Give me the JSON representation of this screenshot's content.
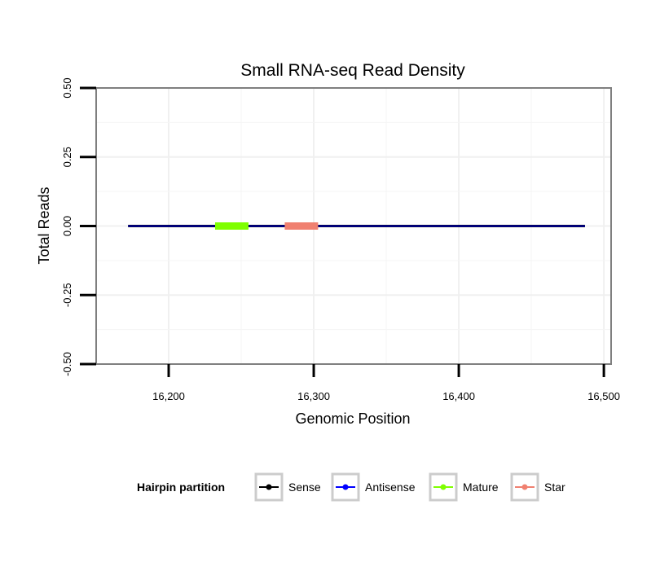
{
  "chart_data": {
    "type": "line",
    "title": "Small RNA-seq Read Density",
    "xlabel": "Genomic Position",
    "ylabel": "Total Reads",
    "xlim": [
      16150,
      16505
    ],
    "ylim": [
      -0.5,
      0.5
    ],
    "x_ticks": [
      16200,
      16300,
      16400,
      16500
    ],
    "x_tick_labels": [
      "16,200",
      "16,300",
      "16,400",
      "16,500"
    ],
    "y_ticks": [
      -0.5,
      -0.25,
      0,
      0.25,
      0.5
    ],
    "y_tick_labels": [
      "-0.50",
      "-0.25",
      "0.00",
      "0.25",
      "0.50"
    ],
    "grid": true,
    "series": [
      {
        "name": "Sense",
        "color": "#000000",
        "x": [
          16172,
          16487
        ],
        "y": [
          0,
          0
        ]
      },
      {
        "name": "Antisense",
        "color": "#0000ff",
        "x": [
          16172,
          16487
        ],
        "y": [
          0,
          0
        ]
      },
      {
        "name": "Mature",
        "color": "#7fff00",
        "x": [
          16232,
          16255
        ],
        "y": [
          0,
          0
        ]
      },
      {
        "name": "Star",
        "color": "#f08070",
        "x": [
          16280,
          16303
        ],
        "y": [
          0,
          0
        ]
      }
    ],
    "legend": {
      "title": "Hairpin partition",
      "position": "bottom",
      "items": [
        "Sense",
        "Antisense",
        "Mature",
        "Star"
      ]
    }
  }
}
